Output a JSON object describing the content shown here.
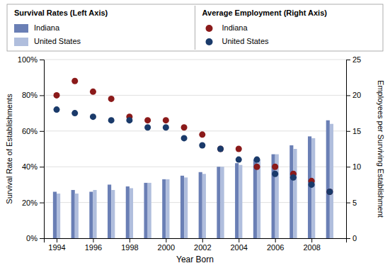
{
  "chart_data": {
    "type": "bar",
    "xlabel": "Year Born",
    "ylabel": "Survival Rate of Establishments",
    "y2label": "Employees per Surviving Establishment",
    "annotations": [
      "Survival Rates (Left Axis)",
      "Average Employment (Right Axis)"
    ],
    "x": [
      1994,
      1995,
      1996,
      1997,
      1998,
      1999,
      2000,
      2001,
      2002,
      2003,
      2004,
      2005,
      2006,
      2007,
      2008,
      2009
    ],
    "series": [
      {
        "name": "Indiana",
        "type": "bar",
        "color": "#6a7fb5",
        "values": [
          0.26,
          0.27,
          0.26,
          0.3,
          0.29,
          0.31,
          0.33,
          0.35,
          0.37,
          0.4,
          0.42,
          0.44,
          0.47,
          0.52,
          0.57,
          0.66
        ]
      },
      {
        "name": "United States",
        "type": "bar",
        "color": "#b0bedd",
        "values": [
          0.25,
          0.25,
          0.27,
          0.27,
          0.28,
          0.31,
          0.33,
          0.34,
          0.36,
          0.4,
          0.41,
          0.44,
          0.47,
          0.5,
          0.56,
          0.64
        ]
      },
      {
        "name": "Indiana",
        "type": "scatter",
        "axis": "y2",
        "color": "#8b1a1a",
        "marker": "circle",
        "values": [
          20.0,
          22.0,
          20.5,
          19.5,
          17.0,
          16.5,
          16.5,
          15.5,
          14.5,
          12.5,
          12.5,
          10.0,
          10.0,
          9.0,
          8.0,
          6.5
        ]
      },
      {
        "name": "United States",
        "type": "scatter",
        "axis": "y2",
        "color": "#1a3a6a",
        "marker": "circle",
        "values": [
          18.0,
          17.5,
          17.0,
          16.5,
          16.5,
          15.5,
          15.5,
          14.0,
          13.0,
          12.5,
          11.0,
          11.0,
          9.0,
          8.5,
          7.5,
          6.5
        ]
      }
    ],
    "xlim": [
      1993.3,
      2009.9
    ],
    "xticks": [
      1994,
      1996,
      1998,
      2000,
      2002,
      2004,
      2006,
      2008
    ],
    "ylim": [
      0,
      1.0
    ],
    "yticks": [
      {
        "value": 0,
        "label": "0%"
      },
      {
        "value": 0.2,
        "label": "20%"
      },
      {
        "value": 0.4,
        "label": "40%"
      },
      {
        "value": 0.6,
        "label": "60%"
      },
      {
        "value": 0.8,
        "label": "80%"
      },
      {
        "value": 1.0,
        "label": "100%"
      }
    ],
    "y2lim": [
      0,
      25
    ],
    "y2ticks": [
      0,
      5,
      10,
      15,
      20,
      25
    ],
    "grid": true,
    "legend": "top"
  }
}
